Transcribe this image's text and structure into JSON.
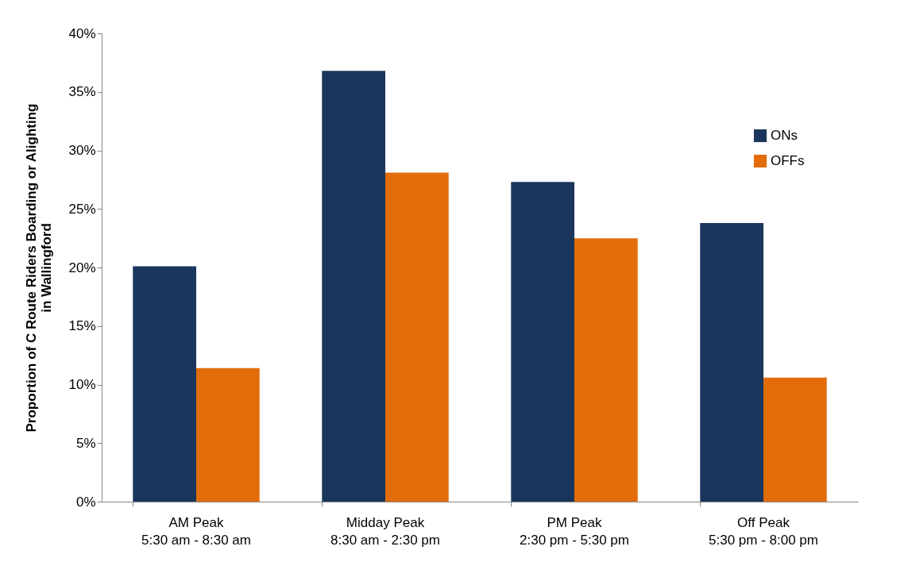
{
  "chart_data": {
    "type": "bar",
    "ylabel": "Proportion of C Route Riders Boarding or Alighting in Wallingford",
    "categories": [
      "AM Peak\n5:30 am - 8:30 am",
      "Midday Peak\n8:30 am - 2:30 pm",
      "PM Peak\n2:30 pm - 5:30 pm",
      "Off Peak\n5:30 pm - 8:00 pm"
    ],
    "series": [
      {
        "name": "ONs",
        "color": "#1b365d",
        "values": [
          20.1,
          36.8,
          27.3,
          23.8
        ]
      },
      {
        "name": "OFFs",
        "color": "#e36c0a",
        "values": [
          11.4,
          28.1,
          22.5,
          10.6
        ]
      }
    ],
    "ylim": [
      0,
      40
    ],
    "yticks": [
      {
        "value": 0,
        "label": "0%"
      },
      {
        "value": 5,
        "label": "5%"
      },
      {
        "value": 10,
        "label": "10%"
      },
      {
        "value": 15,
        "label": "15%"
      },
      {
        "value": 20,
        "label": "20%"
      },
      {
        "value": 25,
        "label": "25%"
      },
      {
        "value": 30,
        "label": "30%"
      },
      {
        "value": 35,
        "label": "35%"
      },
      {
        "value": 40,
        "label": "40%"
      }
    ],
    "grid": false,
    "legend": "right"
  }
}
